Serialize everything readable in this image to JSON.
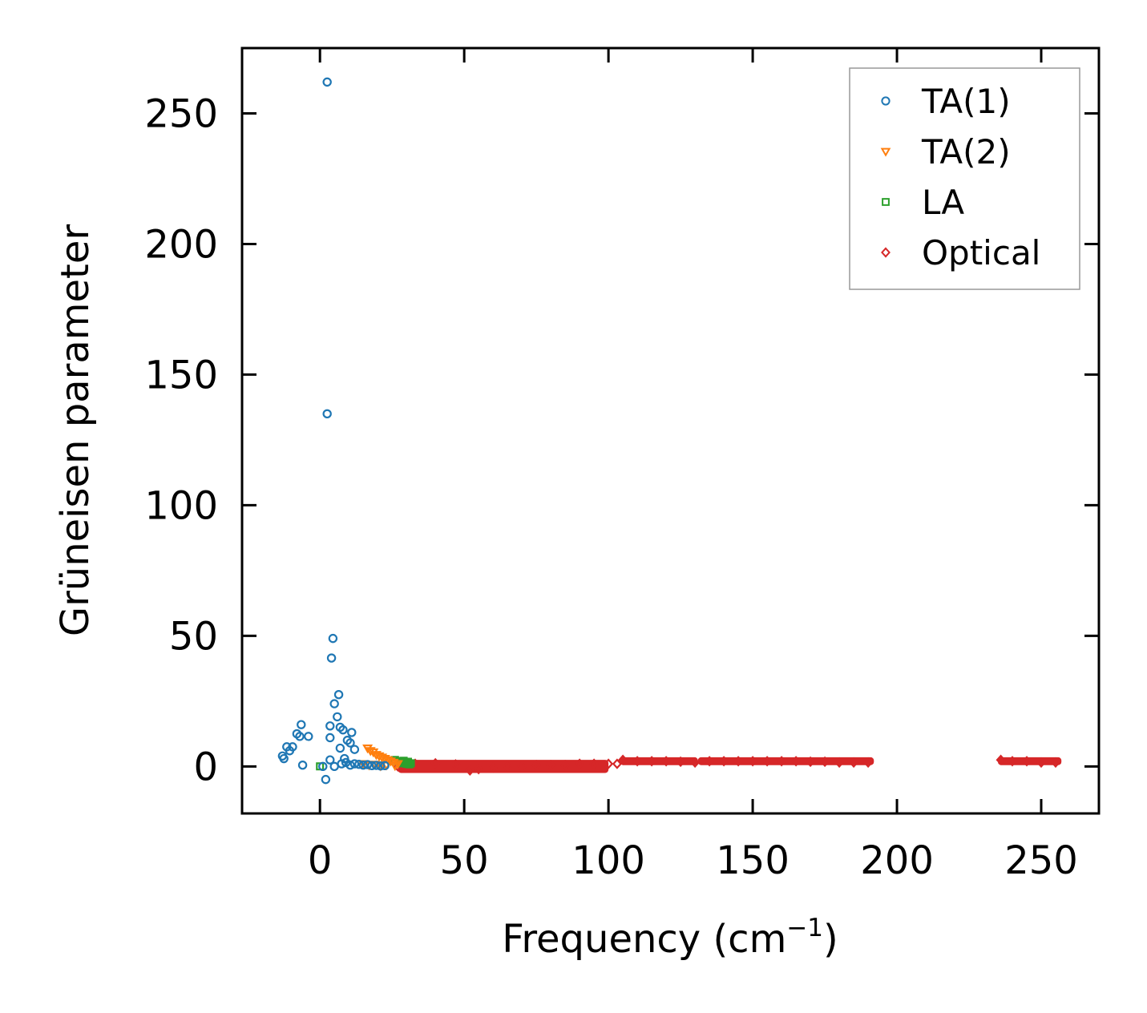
{
  "chart_data": {
    "type": "scatter",
    "title": "",
    "xlabel": "Frequency (cm",
    "xlabel_sup": "−1",
    "xlabel_end": ")",
    "ylabel": "Grüneisen parameter",
    "xlim": [
      -27,
      270
    ],
    "ylim": [
      -18,
      275
    ],
    "xticks": [
      0,
      50,
      100,
      150,
      200,
      250
    ],
    "yticks": [
      0,
      50,
      100,
      150,
      200,
      250
    ],
    "grid": false,
    "legend_position": "top-right",
    "series": [
      {
        "name": "TA(1)",
        "marker": "circle",
        "color": "#1f77b4",
        "points": [
          [
            2.5,
            262
          ],
          [
            2.5,
            135
          ],
          [
            4.5,
            49
          ],
          [
            4.0,
            41.5
          ],
          [
            6.5,
            27.5
          ],
          [
            5.0,
            24
          ],
          [
            6.0,
            19
          ],
          [
            -6.5,
            16
          ],
          [
            3.5,
            15.5
          ],
          [
            7.0,
            15
          ],
          [
            8.0,
            14
          ],
          [
            11.0,
            13
          ],
          [
            -8.0,
            12.5
          ],
          [
            -7.0,
            11.5
          ],
          [
            -4.0,
            11.5
          ],
          [
            3.5,
            11
          ],
          [
            9.5,
            10
          ],
          [
            10.5,
            9
          ],
          [
            -9.5,
            7.5
          ],
          [
            -11.5,
            7.5
          ],
          [
            -10.5,
            6
          ],
          [
            7.0,
            7
          ],
          [
            12.0,
            6.5
          ],
          [
            -13.0,
            4
          ],
          [
            -12.5,
            3
          ],
          [
            3.5,
            2.5
          ],
          [
            8.5,
            3
          ],
          [
            -6.0,
            0.5
          ],
          [
            1.0,
            0
          ],
          [
            5.0,
            0
          ],
          [
            7.5,
            1
          ],
          [
            9.0,
            1.5
          ],
          [
            10.5,
            0.5
          ],
          [
            12.0,
            1
          ],
          [
            13.5,
            0.8
          ],
          [
            15.0,
            0.5
          ],
          [
            16.5,
            0.7
          ],
          [
            18.0,
            0.3
          ],
          [
            19.5,
            0.4
          ],
          [
            21.0,
            0.2
          ],
          [
            22.5,
            0.3
          ],
          [
            2.0,
            -5
          ]
        ]
      },
      {
        "name": "TA(2)",
        "marker": "triangle-down",
        "color": "#ff7f0e",
        "points": [
          [
            16.5,
            7
          ],
          [
            17.5,
            6
          ],
          [
            18.5,
            5.5
          ],
          [
            19.5,
            4.5
          ],
          [
            20.5,
            4
          ],
          [
            21.5,
            3.5
          ],
          [
            22.5,
            3
          ],
          [
            23.5,
            2.5
          ],
          [
            24.5,
            2
          ],
          [
            25.5,
            1.5
          ],
          [
            15.0,
            1
          ],
          [
            17.0,
            0.5
          ],
          [
            19.0,
            0.8
          ],
          [
            21.0,
            0.2
          ],
          [
            23.0,
            0.5
          ],
          [
            26.0,
            0.3
          ],
          [
            27.0,
            1
          ]
        ]
      },
      {
        "name": "LA",
        "marker": "square",
        "color": "#2ca02c",
        "points": [
          [
            0.0,
            0
          ],
          [
            26.0,
            2.5
          ],
          [
            27.0,
            2
          ],
          [
            28.0,
            1.8
          ],
          [
            28.5,
            1.2
          ],
          [
            29.0,
            2.2
          ],
          [
            29.5,
            1.5
          ],
          [
            30.0,
            1
          ],
          [
            30.5,
            1.8
          ],
          [
            31.0,
            0.8
          ],
          [
            31.5,
            1.2
          ]
        ]
      },
      {
        "name": "Optical",
        "marker": "diamond",
        "color": "#d62728",
        "points": [
          [
            27,
            0.0
          ],
          [
            33,
            1.0
          ],
          [
            40,
            1.2
          ],
          [
            47,
            0.8
          ],
          [
            52,
            -1.5
          ],
          [
            55,
            -1.0
          ],
          [
            60,
            -0.5
          ],
          [
            65,
            0.0
          ],
          [
            70,
            0.0
          ],
          [
            75,
            0.5
          ],
          [
            80,
            0.5
          ],
          [
            85,
            0.5
          ],
          [
            90,
            1.0
          ],
          [
            95,
            1.0
          ],
          [
            100,
            1.0
          ],
          [
            103,
            1.0
          ],
          [
            105,
            2.5
          ],
          [
            110,
            2.0
          ],
          [
            115,
            2.0
          ],
          [
            120,
            2.0
          ],
          [
            125,
            1.8
          ],
          [
            130,
            1.5
          ],
          [
            135,
            2.0
          ],
          [
            140,
            2.0
          ],
          [
            145,
            2.0
          ],
          [
            150,
            2.0
          ],
          [
            155,
            2.0
          ],
          [
            160,
            2.0
          ],
          [
            165,
            2.0
          ],
          [
            170,
            1.8
          ],
          [
            175,
            1.8
          ],
          [
            180,
            1.5
          ],
          [
            185,
            1.5
          ],
          [
            190,
            1.5
          ],
          [
            236,
            2.5
          ],
          [
            240,
            2.0
          ],
          [
            245,
            2.0
          ],
          [
            250,
            1.5
          ],
          [
            255,
            1.5
          ]
        ],
        "bands": [
          [
            27,
            100,
            -2.5,
            2.5
          ],
          [
            104,
            131,
            0.5,
            3.5
          ],
          [
            131,
            192,
            0.5,
            3.5
          ],
          [
            235,
            257,
            0.5,
            3.5
          ]
        ]
      }
    ]
  }
}
